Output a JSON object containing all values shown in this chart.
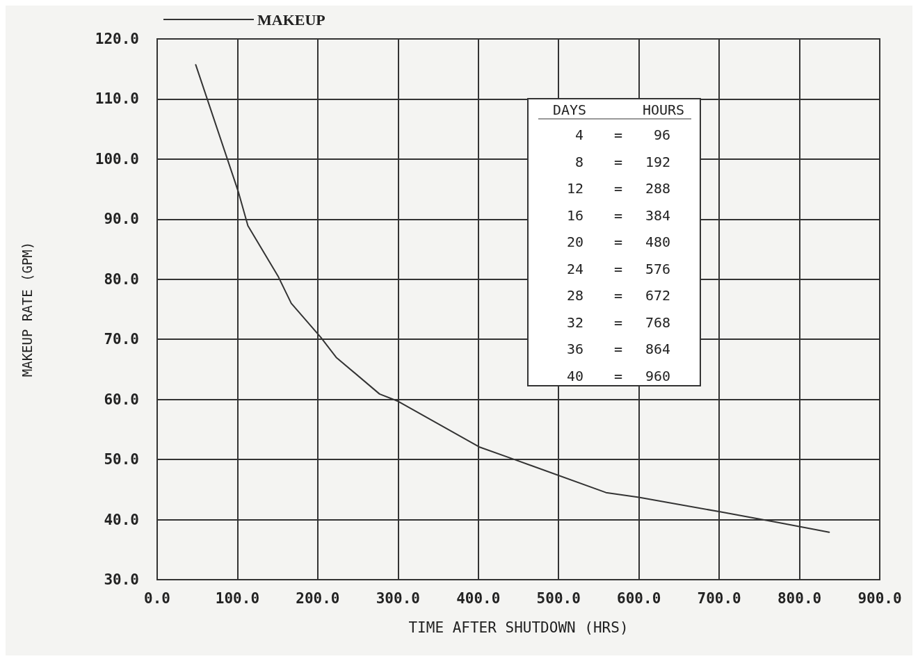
{
  "chart_data": {
    "type": "line",
    "xlabel": "TIME AFTER SHUTDOWN (HRS)",
    "ylabel": "MAKEUP RATE (GPM)",
    "x": [
      48,
      101,
      113,
      151,
      167,
      204,
      223,
      277,
      300,
      401,
      445,
      559,
      600,
      701,
      770,
      837
    ],
    "series": [
      {
        "name": "MAKEUP",
        "color": "#333333",
        "values": [
          115.7,
          94.6,
          88.9,
          80.4,
          76,
          70.3,
          67,
          60.9,
          59.7,
          52.1,
          50,
          44.5,
          43.7,
          41.3,
          39.6,
          37.9
        ]
      }
    ],
    "xlim": [
      0,
      900
    ],
    "xticks": [
      {
        "value": 0,
        "label": "0.0"
      },
      {
        "value": 100,
        "label": "100.0"
      },
      {
        "value": 200,
        "label": "200.0"
      },
      {
        "value": 300,
        "label": "300.0"
      },
      {
        "value": 400,
        "label": "400.0"
      },
      {
        "value": 500,
        "label": "500.0"
      },
      {
        "value": 600,
        "label": "600.0"
      },
      {
        "value": 700,
        "label": "700.0"
      },
      {
        "value": 800,
        "label": "800.0"
      },
      {
        "value": 900,
        "label": "900.0"
      }
    ],
    "ylim": [
      30,
      120
    ],
    "yticks": [
      {
        "value": 30,
        "label": "30.0"
      },
      {
        "value": 40,
        "label": "40.0"
      },
      {
        "value": 50,
        "label": "50.0"
      },
      {
        "value": 60,
        "label": "60.0"
      },
      {
        "value": 70,
        "label": "70.0"
      },
      {
        "value": 80,
        "label": "80.0"
      },
      {
        "value": 90,
        "label": "90.0"
      },
      {
        "value": 100,
        "label": "100.0"
      },
      {
        "value": 110,
        "label": "110.0"
      },
      {
        "value": 120,
        "label": "120.0"
      }
    ],
    "grid": true,
    "legend": "top left",
    "marker": "none",
    "line_style": "solid",
    "annotations": [
      "DAYS",
      "HOURS",
      "4",
      "=",
      "96",
      "8",
      "=",
      "192",
      "12",
      "=",
      "288",
      "16",
      "=",
      "384",
      "20",
      "=",
      "480",
      "24",
      "=",
      "576",
      "28",
      "=",
      "672",
      "32",
      "=",
      "768",
      "36",
      "=",
      "864",
      "40",
      "=",
      "960"
    ]
  }
}
